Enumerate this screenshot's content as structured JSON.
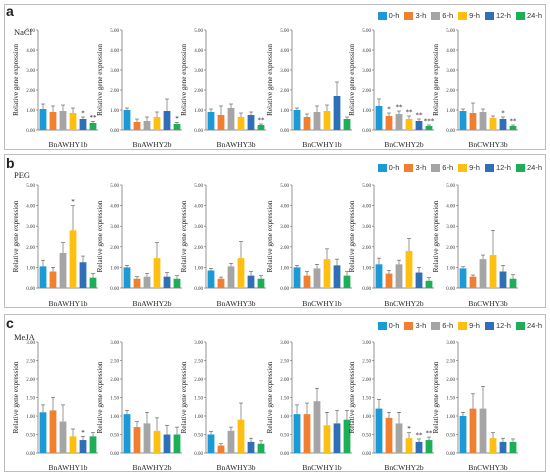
{
  "legend": {
    "items": [
      {
        "label": "0-h",
        "color": "#1a9ad6"
      },
      {
        "label": "3-h",
        "color": "#f07f32"
      },
      {
        "label": "6-h",
        "color": "#a5a5a5"
      },
      {
        "label": "9-h",
        "color": "#fdc010"
      },
      {
        "label": "12-h",
        "color": "#2f6fb7"
      },
      {
        "label": "24-h",
        "color": "#1fae58"
      }
    ]
  },
  "panels": [
    {
      "letter": "a",
      "name": "NaCl"
    },
    {
      "letter": "b",
      "name": "PEG"
    },
    {
      "letter": "c",
      "name": "MeJA"
    }
  ],
  "chart_data": [
    {
      "panel": "a",
      "type": "bar",
      "xlabel": "BnAWHY1b",
      "ylabel": "Relative gene expression",
      "ylim": [
        0,
        5
      ],
      "yticks": [
        "0.00",
        "1.00",
        "2.00",
        "3.00",
        "4.00",
        "5.00"
      ],
      "categories": [
        "0-h",
        "3-h",
        "6-h",
        "9-h",
        "12-h",
        "24-h"
      ],
      "values": [
        1.05,
        0.9,
        0.95,
        0.85,
        0.55,
        0.35
      ],
      "errors": [
        0.25,
        0.3,
        0.3,
        0.25,
        0.1,
        0.08
      ],
      "annotations": [
        "",
        "",
        "",
        "",
        "*",
        "**"
      ]
    },
    {
      "panel": "a",
      "type": "bar",
      "xlabel": "BnAWHY2b",
      "ylabel": "Relative gene expression",
      "ylim": [
        0,
        5
      ],
      "yticks": [
        "0.00",
        "1.00",
        "2.00",
        "3.00",
        "4.00",
        "5.00"
      ],
      "categories": [
        "0-h",
        "3-h",
        "6-h",
        "9-h",
        "12-h",
        "24-h"
      ],
      "values": [
        1.0,
        0.4,
        0.45,
        0.65,
        0.95,
        0.3
      ],
      "errors": [
        0.1,
        0.15,
        0.2,
        0.25,
        0.6,
        0.08
      ],
      "annotations": [
        "",
        "",
        "",
        "",
        "",
        "*"
      ]
    },
    {
      "panel": "a",
      "type": "bar",
      "xlabel": "BnAWHY3b",
      "ylabel": "Relative gene expression",
      "ylim": [
        0,
        5
      ],
      "yticks": [
        "0.00",
        "1.00",
        "2.00",
        "3.00",
        "4.00",
        "5.00"
      ],
      "categories": [
        "0-h",
        "3-h",
        "6-h",
        "9-h",
        "12-h",
        "24-h"
      ],
      "values": [
        0.9,
        0.75,
        1.1,
        0.65,
        0.75,
        0.25
      ],
      "errors": [
        0.15,
        0.45,
        0.2,
        0.2,
        0.15,
        0.05
      ],
      "annotations": [
        "",
        "",
        "",
        "",
        "",
        "**"
      ]
    },
    {
      "panel": "a",
      "type": "bar",
      "xlabel": "BnCWHY1b",
      "ylabel": "Relative gene expression",
      "ylim": [
        0,
        5
      ],
      "yticks": [
        "0.00",
        "1.00",
        "2.00",
        "3.00",
        "4.00",
        "5.00"
      ],
      "categories": [
        "0-h",
        "3-h",
        "6-h",
        "9-h",
        "12-h",
        "24-h"
      ],
      "values": [
        1.0,
        0.65,
        0.9,
        0.95,
        1.7,
        0.55
      ],
      "errors": [
        0.1,
        0.15,
        0.3,
        0.3,
        0.7,
        0.1
      ],
      "annotations": [
        "",
        "",
        "",
        "",
        "",
        ""
      ]
    },
    {
      "panel": "a",
      "type": "bar",
      "xlabel": "BnCWHY2b",
      "ylabel": "Relative gene expression",
      "ylim": [
        0,
        5
      ],
      "yticks": [
        "0.00",
        "1.00",
        "2.00",
        "3.00",
        "4.00",
        "5.00"
      ],
      "categories": [
        "0-h",
        "3-h",
        "6-h",
        "9-h",
        "12-h",
        "24-h"
      ],
      "values": [
        1.2,
        0.7,
        0.8,
        0.55,
        0.45,
        0.2
      ],
      "errors": [
        0.35,
        0.15,
        0.15,
        0.15,
        0.1,
        0.05
      ],
      "annotations": [
        "",
        "*",
        "**",
        "**",
        "**",
        "***"
      ]
    },
    {
      "panel": "a",
      "type": "bar",
      "xlabel": "BnCWHY3b",
      "ylabel": "Relative gene expression",
      "ylim": [
        0,
        5
      ],
      "yticks": [
        "0.00",
        "1.00",
        "2.00",
        "3.00",
        "4.00",
        "5.00"
      ],
      "categories": [
        "0-h",
        "3-h",
        "6-h",
        "9-h",
        "12-h",
        "24-h"
      ],
      "values": [
        0.95,
        0.85,
        0.9,
        0.6,
        0.55,
        0.2
      ],
      "errors": [
        0.1,
        0.5,
        0.15,
        0.1,
        0.1,
        0.05
      ],
      "annotations": [
        "",
        "",
        "",
        "",
        "*",
        "**"
      ]
    },
    {
      "panel": "b",
      "type": "bar",
      "xlabel": "BnAWHY1b",
      "ylabel": "Relative gene expression",
      "ylim": [
        0,
        5
      ],
      "yticks": [
        "0.00",
        "1.00",
        "2.00",
        "3.00",
        "4.00",
        "5.00"
      ],
      "categories": [
        "0-h",
        "3-h",
        "6-h",
        "9-h",
        "12-h",
        "24-h"
      ],
      "values": [
        1.05,
        0.8,
        1.7,
        2.8,
        1.25,
        0.5
      ],
      "errors": [
        0.3,
        0.2,
        0.5,
        1.2,
        0.3,
        0.2
      ],
      "annotations": [
        "",
        "",
        "",
        "*",
        "",
        ""
      ]
    },
    {
      "panel": "b",
      "type": "bar",
      "xlabel": "BnAWHY2b",
      "ylabel": "Relative gene expression",
      "ylim": [
        0,
        5
      ],
      "yticks": [
        "0.00",
        "1.00",
        "2.00",
        "3.00",
        "4.00",
        "5.00"
      ],
      "categories": [
        "0-h",
        "3-h",
        "6-h",
        "9-h",
        "12-h",
        "24-h"
      ],
      "values": [
        1.0,
        0.45,
        0.55,
        1.45,
        0.55,
        0.45
      ],
      "errors": [
        0.1,
        0.1,
        0.15,
        0.75,
        0.2,
        0.15
      ],
      "annotations": [
        "",
        "",
        "",
        "",
        "",
        ""
      ]
    },
    {
      "panel": "b",
      "type": "bar",
      "xlabel": "BnAWHY3b",
      "ylabel": "Relative gene expression",
      "ylim": [
        0,
        5
      ],
      "yticks": [
        "0.00",
        "1.00",
        "2.00",
        "3.00",
        "4.00",
        "5.00"
      ],
      "categories": [
        "0-h",
        "3-h",
        "6-h",
        "9-h",
        "12-h",
        "24-h"
      ],
      "values": [
        0.85,
        0.45,
        1.05,
        1.45,
        0.6,
        0.45
      ],
      "errors": [
        0.1,
        0.08,
        0.15,
        0.8,
        0.2,
        0.15
      ],
      "annotations": [
        "",
        "",
        "",
        "",
        "",
        ""
      ]
    },
    {
      "panel": "b",
      "type": "bar",
      "xlabel": "BnCWHY1b",
      "ylabel": "Relative gene expression",
      "ylim": [
        0,
        5
      ],
      "yticks": [
        "0.00",
        "1.00",
        "2.00",
        "3.00",
        "4.00",
        "5.00"
      ],
      "categories": [
        "0-h",
        "3-h",
        "6-h",
        "9-h",
        "12-h",
        "24-h"
      ],
      "values": [
        1.0,
        0.6,
        0.95,
        1.4,
        1.1,
        0.6
      ],
      "errors": [
        0.1,
        0.2,
        0.2,
        0.5,
        0.3,
        0.2
      ],
      "annotations": [
        "",
        "",
        "",
        "",
        "",
        ""
      ]
    },
    {
      "panel": "b",
      "type": "bar",
      "xlabel": "BnCWHY2b",
      "ylabel": "Relative gene expression",
      "ylim": [
        0,
        5
      ],
      "yticks": [
        "0.00",
        "1.00",
        "2.00",
        "3.00",
        "4.00",
        "5.00"
      ],
      "categories": [
        "0-h",
        "3-h",
        "6-h",
        "9-h",
        "12-h",
        "24-h"
      ],
      "values": [
        1.15,
        0.7,
        1.15,
        1.8,
        0.75,
        0.35
      ],
      "errors": [
        0.3,
        0.15,
        0.2,
        0.6,
        0.25,
        0.15
      ],
      "annotations": [
        "",
        "",
        "",
        "",
        "",
        ""
      ]
    },
    {
      "panel": "b",
      "type": "bar",
      "xlabel": "BnCWHY3b",
      "ylabel": "Relative gene expression",
      "ylim": [
        0,
        5
      ],
      "yticks": [
        "0.00",
        "1.00",
        "2.00",
        "3.00",
        "4.00",
        "5.00"
      ],
      "categories": [
        "0-h",
        "3-h",
        "6-h",
        "9-h",
        "12-h",
        "24-h"
      ],
      "values": [
        0.95,
        0.55,
        1.4,
        1.6,
        0.8,
        0.45
      ],
      "errors": [
        0.08,
        0.08,
        0.2,
        1.2,
        0.3,
        0.2
      ],
      "annotations": [
        "",
        "",
        "",
        "",
        "",
        ""
      ]
    },
    {
      "panel": "c",
      "type": "bar",
      "xlabel": "BnAWHY1b",
      "ylabel": "Relative gene expression",
      "ylim": [
        0,
        3
      ],
      "yticks": [
        "0.00",
        "0.50",
        "1.00",
        "1.50",
        "2.00",
        "2.50",
        "3.00"
      ],
      "categories": [
        "0-h",
        "3-h",
        "6-h",
        "9-h",
        "12-h",
        "24-h"
      ],
      "values": [
        1.1,
        1.15,
        0.85,
        0.45,
        0.35,
        0.45
      ],
      "errors": [
        0.2,
        0.35,
        0.45,
        0.2,
        0.1,
        0.1
      ],
      "annotations": [
        "",
        "",
        "",
        "",
        "*",
        ""
      ]
    },
    {
      "panel": "c",
      "type": "bar",
      "xlabel": "BnAWHY2b",
      "ylabel": "Relative gene expression",
      "ylim": [
        0,
        3
      ],
      "yticks": [
        "0.00",
        "0.50",
        "1.00",
        "1.50",
        "2.00",
        "2.50",
        "3.00"
      ],
      "categories": [
        "0-h",
        "3-h",
        "6-h",
        "9-h",
        "12-h",
        "24-h"
      ],
      "values": [
        1.05,
        0.7,
        0.8,
        0.6,
        0.5,
        0.5
      ],
      "errors": [
        0.1,
        0.15,
        0.3,
        0.35,
        0.25,
        0.2
      ],
      "annotations": [
        "",
        "",
        "",
        "",
        "",
        ""
      ]
    },
    {
      "panel": "c",
      "type": "bar",
      "xlabel": "BnAWHY3b",
      "ylabel": "Relative gene expression",
      "ylim": [
        0,
        3
      ],
      "yticks": [
        "0.00",
        "0.50",
        "1.00",
        "1.50",
        "2.00",
        "2.50",
        "3.00"
      ],
      "categories": [
        "0-h",
        "3-h",
        "6-h",
        "9-h",
        "12-h",
        "24-h"
      ],
      "values": [
        0.5,
        0.2,
        0.6,
        0.9,
        0.3,
        0.25
      ],
      "errors": [
        0.08,
        0.05,
        0.1,
        0.45,
        0.1,
        0.08
      ],
      "annotations": [
        "",
        "",
        "",
        "",
        "",
        ""
      ]
    },
    {
      "panel": "c",
      "type": "bar",
      "xlabel": "BnCWHY1b",
      "ylabel": "Relative gene expression",
      "ylim": [
        0,
        3
      ],
      "yticks": [
        "0.00",
        "0.50",
        "1.00",
        "1.50",
        "2.00",
        "2.50",
        "3.00"
      ],
      "categories": [
        "0-h",
        "3-h",
        "6-h",
        "9-h",
        "12-h",
        "24-h"
      ],
      "values": [
        1.05,
        1.05,
        1.4,
        0.75,
        0.8,
        0.9
      ],
      "errors": [
        0.25,
        0.3,
        0.35,
        0.35,
        0.35,
        0.25
      ],
      "annotations": [
        "",
        "",
        "",
        "",
        "",
        ""
      ]
    },
    {
      "panel": "c",
      "type": "bar",
      "xlabel": "BnCWHY2b",
      "ylabel": "Relative gene expression",
      "ylim": [
        0,
        3
      ],
      "yticks": [
        "0.00",
        "0.50",
        "1.00",
        "1.50",
        "2.00",
        "2.50",
        "3.00"
      ],
      "categories": [
        "0-h",
        "3-h",
        "6-h",
        "9-h",
        "12-h",
        "24-h"
      ],
      "values": [
        1.2,
        0.95,
        0.8,
        0.4,
        0.3,
        0.35
      ],
      "errors": [
        0.25,
        0.15,
        0.3,
        0.15,
        0.08,
        0.08
      ],
      "annotations": [
        "",
        "",
        "",
        "*",
        "**",
        "**"
      ]
    },
    {
      "panel": "c",
      "type": "bar",
      "xlabel": "BnCWHY3b",
      "ylabel": "Relative gene expression",
      "ylim": [
        0,
        3
      ],
      "yticks": [
        "0.00",
        "0.50",
        "1.00",
        "1.50",
        "2.00",
        "2.50",
        "3.00"
      ],
      "categories": [
        "0-h",
        "3-h",
        "6-h",
        "9-h",
        "12-h",
        "24-h"
      ],
      "values": [
        1.0,
        1.2,
        1.2,
        0.4,
        0.3,
        0.3
      ],
      "errors": [
        0.1,
        0.4,
        0.6,
        0.15,
        0.1,
        0.08
      ],
      "annotations": [
        "",
        "",
        "",
        "",
        "",
        ""
      ]
    }
  ]
}
